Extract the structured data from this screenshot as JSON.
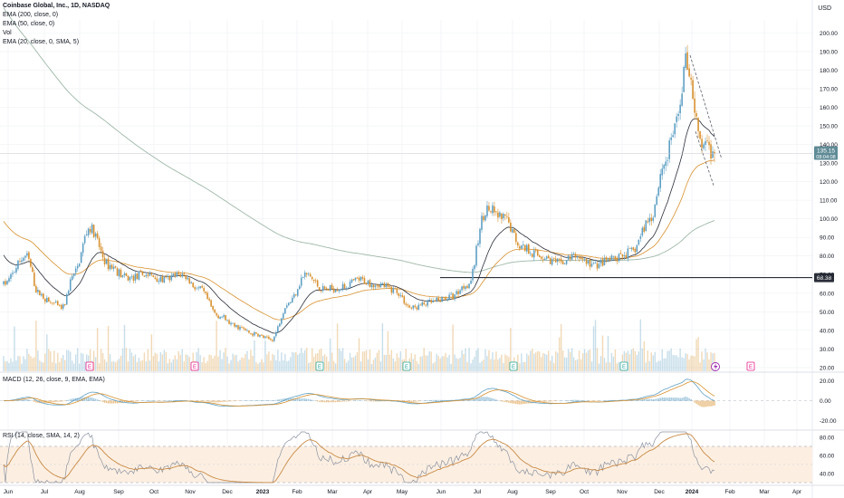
{
  "legend": {
    "symbol": "Coinbase Global, Inc., 1D, NASDAQ",
    "ema200": "EMA (200, close, 0)",
    "ema50": "EMA (50, close, 0)",
    "vol": "Vol",
    "ema20": "EMA (20, close, 0, SMA, 5)"
  },
  "currency": "USD",
  "macd_label": "MACD (12, 26, close, 9, EMA, EMA)",
  "rsi_label": "RSI (14, close, SMA, 14, 2)",
  "last_price": "135.15",
  "last_price_time": "08:04:08",
  "level_label": "68.38",
  "colors": {
    "up": "#5fa0c4",
    "down": "#d8912f",
    "ema200": "#9fb8a8",
    "ema50": "#d8912f",
    "ema20": "#2a2e39",
    "macd": "#5fa0c4",
    "signal": "#d8912f",
    "rsi": "#8c93a0",
    "rsi_ma": "#c98a45",
    "rsi_band": "#fcefe2",
    "level": "#2a2e39",
    "price_tag": "#5f8b96",
    "grid": "#eef0f3"
  },
  "chart_data": {
    "type": "candlestick",
    "x_ticks": [
      "Jun",
      "Jul",
      "Aug",
      "Sep",
      "Oct",
      "Nov",
      "Dec",
      "2023",
      "Feb",
      "Mar",
      "Apr",
      "May",
      "Jun",
      "Jul",
      "Aug",
      "Sep",
      "Oct",
      "Nov",
      "Dec",
      "2024",
      "Feb",
      "Mar",
      "Apr"
    ],
    "y_ticks": [
      200,
      190,
      180,
      170,
      160,
      150,
      140,
      130,
      120,
      110,
      100,
      90,
      80,
      70,
      60,
      50,
      40,
      30,
      20
    ],
    "ylim": [
      18,
      207
    ],
    "close_path": [
      [
        "Jun",
        65
      ],
      [
        "Jun",
        80
      ],
      [
        "Jun",
        60
      ],
      [
        "Jul",
        55
      ],
      [
        "Jul",
        52
      ],
      [
        "Jul",
        70
      ],
      [
        "Aug",
        95
      ],
      [
        "Aug",
        75
      ],
      [
        "Sep",
        68
      ],
      [
        "Sep",
        70
      ],
      [
        "Oct",
        67
      ],
      [
        "Oct",
        70
      ],
      [
        "Nov",
        62
      ],
      [
        "Nov",
        48
      ],
      [
        "Dec",
        42
      ],
      [
        "Dec",
        38
      ],
      [
        "2023",
        35
      ],
      [
        "2023",
        55
      ],
      [
        "Feb",
        70
      ],
      [
        "Feb",
        62
      ],
      [
        "Mar",
        63
      ],
      [
        "Mar",
        67
      ],
      [
        "Apr",
        65
      ],
      [
        "Apr",
        62
      ],
      [
        "May",
        52
      ],
      [
        "May",
        55
      ],
      [
        "Jun",
        58
      ],
      [
        "Jun",
        65
      ],
      [
        "Jul",
        105
      ],
      [
        "Jul",
        100
      ],
      [
        "Aug",
        85
      ],
      [
        "Aug",
        80
      ],
      [
        "Sep",
        76
      ],
      [
        "Sep",
        80
      ],
      [
        "Oct",
        75
      ],
      [
        "Oct",
        78
      ],
      [
        "Nov",
        82
      ],
      [
        "Nov",
        100
      ],
      [
        "Dec",
        130
      ],
      [
        "Dec",
        150
      ],
      [
        "Dec",
        185
      ],
      [
        "2024",
        140
      ],
      [
        "2024",
        135
      ]
    ],
    "last_close": 135.15,
    "horizontal_level": 68.38,
    "earnings_markers": [
      "E",
      "E",
      "E",
      "E",
      "E",
      "E",
      "E"
    ],
    "macd": {
      "ylim": [
        -25,
        25
      ],
      "y_ticks": [
        20,
        0,
        -20
      ]
    },
    "rsi": {
      "ylim": [
        28,
        88
      ],
      "y_ticks": [
        80,
        60,
        40
      ],
      "band": [
        30,
        70
      ]
    }
  }
}
